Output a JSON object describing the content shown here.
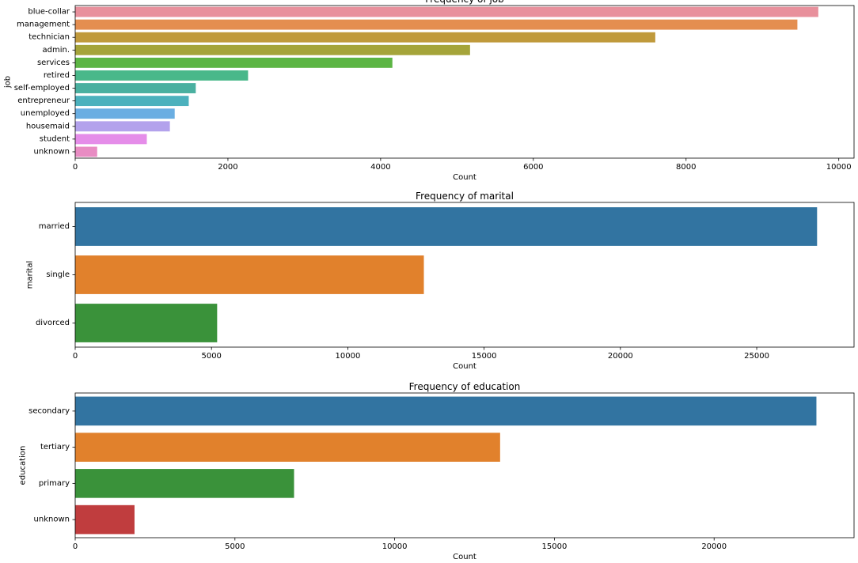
{
  "chart_data": [
    {
      "type": "bar",
      "orientation": "horizontal",
      "title": "Frequency of job",
      "xlabel": "Count",
      "ylabel": "job",
      "xlim": [
        0,
        10200
      ],
      "xticks": [
        0,
        2000,
        4000,
        6000,
        8000,
        10000
      ],
      "xtick_labels": [
        "0",
        "2000",
        "4000",
        "6000",
        "8000",
        "10000"
      ],
      "categories": [
        "blue-collar",
        "management",
        "technician",
        "admin.",
        "services",
        "retired",
        "self-employed",
        "entrepreneur",
        "unemployed",
        "housemaid",
        "student",
        "unknown"
      ],
      "values": [
        9732,
        9458,
        7597,
        5171,
        4154,
        2264,
        1579,
        1487,
        1303,
        1240,
        938,
        288
      ],
      "colors": [
        "#e8909c",
        "#e48e50",
        "#c09a3c",
        "#a5a43a",
        "#5cb544",
        "#49b88a",
        "#4ab0a0",
        "#4cb1bd",
        "#6aaee2",
        "#b3a2ec",
        "#e58de9",
        "#e88cc3"
      ]
    },
    {
      "type": "bar",
      "orientation": "horizontal",
      "title": "Frequency of marital",
      "xlabel": "Count",
      "ylabel": "marital",
      "xlim": [
        0,
        28570
      ],
      "xticks": [
        0,
        5000,
        10000,
        15000,
        20000,
        25000
      ],
      "xtick_labels": [
        "0",
        "5000",
        "10000",
        "15000",
        "20000",
        "25000"
      ],
      "categories": [
        "married",
        "single",
        "divorced"
      ],
      "values": [
        27214,
        12790,
        5207
      ],
      "colors": [
        "#3274a1",
        "#e1812c",
        "#3a923a"
      ]
    },
    {
      "type": "bar",
      "orientation": "horizontal",
      "title": "Frequency of education",
      "xlabel": "Count",
      "ylabel": "education",
      "xlim": [
        0,
        24380
      ],
      "xticks": [
        0,
        5000,
        10000,
        15000,
        20000
      ],
      "xtick_labels": [
        "0",
        "5000",
        "10000",
        "15000",
        "20000"
      ],
      "categories": [
        "secondary",
        "tertiary",
        "primary",
        "unknown"
      ],
      "values": [
        23202,
        13301,
        6851,
        1857
      ],
      "colors": [
        "#3274a1",
        "#e1812c",
        "#3a923a",
        "#c03d3e"
      ]
    }
  ]
}
